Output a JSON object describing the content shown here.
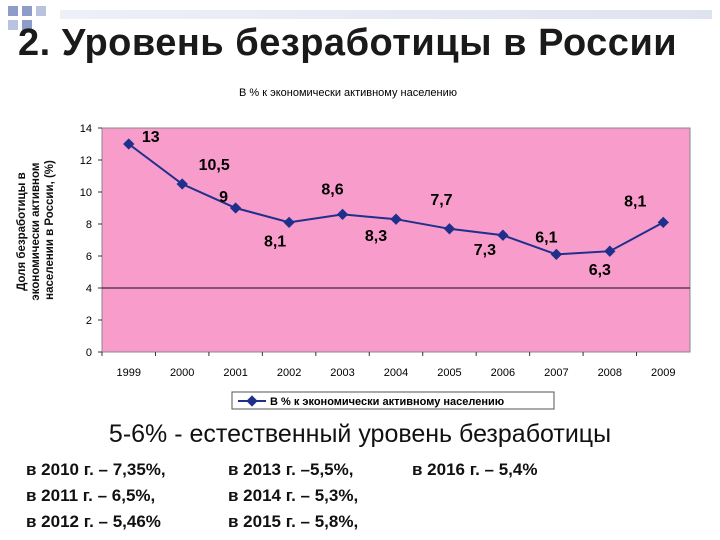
{
  "slide": {
    "title": "2. Уровень безработицы в России",
    "subtitle": "5-6% - естественный уровень безработицы",
    "facts_columns": [
      [
        "в 2010 г.  – 7,35%,",
        "в 2011 г. – 6,5%,",
        "в 2012 г. – 5,46%"
      ],
      [
        "в 2013 г.  –5,5%,",
        "в 2014 г.  – 5,3%,",
        "в 2015 г.  – 5,8%,"
      ],
      [
        "в 2016 г. – 5,4%"
      ]
    ]
  },
  "colors": {
    "plot_bg": "#F79CCB",
    "series": "#1F2F8C",
    "title_squares": "#8E9CC9"
  },
  "chart_data": {
    "type": "line",
    "title": "В % к экономически активному населению",
    "ylabel": "Доля безработицы в экономически активном населении в России, (%)",
    "xlabel": "",
    "ylim": [
      0,
      14
    ],
    "yticks": [
      "0",
      "2",
      "4",
      "6",
      "8",
      "10",
      "12",
      "14"
    ],
    "grid": "horizontal line at 4 only",
    "categories": [
      "1999",
      "2000",
      "2001",
      "2002",
      "2003",
      "2004",
      "2005",
      "2006",
      "2007",
      "2008",
      "2009"
    ],
    "series": [
      {
        "name": "В % к экономически активному населению",
        "values": [
          13,
          10.5,
          9,
          8.1,
          8.6,
          8.3,
          7.7,
          7.3,
          6.1,
          6.3,
          8.1
        ],
        "labels": [
          "13",
          "10,5",
          "9",
          "8,1",
          "8,6",
          "8,3",
          "7,7",
          "7,3",
          "6,1",
          "6,3",
          "8,1"
        ]
      }
    ],
    "legend": "bottom"
  }
}
